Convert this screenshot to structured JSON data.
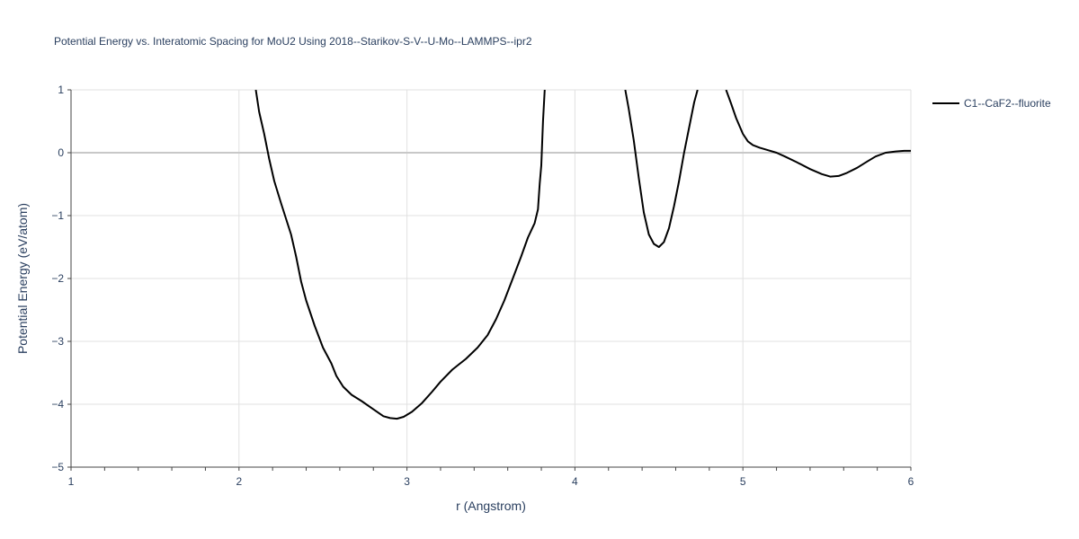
{
  "chart_data": {
    "type": "line",
    "title": "Potential Energy vs. Interatomic Spacing for MoU2 Using 2018--Starikov-S-V--U-Mo--LAMMPS--ipr2",
    "xlabel": "r (Angstrom)",
    "ylabel": "Potential Energy (eV/atom)",
    "xlim": [
      1,
      6
    ],
    "ylim": [
      -5,
      1
    ],
    "x_ticks": [
      "1",
      "2",
      "3",
      "4",
      "5",
      "6"
    ],
    "y_ticks": [
      "1",
      "0",
      "−1",
      "−2",
      "−3",
      "−4",
      "−5"
    ],
    "grid": true,
    "legend_position": "top-right",
    "series": [
      {
        "name": "C1--CaF2--fluorite",
        "color": "#000000",
        "segments": [
          [
            [
              2.1,
              1.0
            ],
            [
              2.12,
              0.65
            ],
            [
              2.15,
              0.3
            ],
            [
              2.18,
              -0.1
            ],
            [
              2.21,
              -0.45
            ],
            [
              2.25,
              -0.8
            ],
            [
              2.28,
              -1.05
            ],
            [
              2.31,
              -1.3
            ],
            [
              2.34,
              -1.65
            ],
            [
              2.37,
              -2.05
            ],
            [
              2.4,
              -2.35
            ],
            [
              2.45,
              -2.75
            ],
            [
              2.5,
              -3.1
            ],
            [
              2.55,
              -3.35
            ],
            [
              2.58,
              -3.55
            ],
            [
              2.62,
              -3.72
            ],
            [
              2.67,
              -3.85
            ],
            [
              2.73,
              -3.95
            ],
            [
              2.8,
              -4.08
            ],
            [
              2.86,
              -4.19
            ],
            [
              2.9,
              -4.22
            ],
            [
              2.94,
              -4.23
            ],
            [
              2.98,
              -4.2
            ],
            [
              3.03,
              -4.12
            ],
            [
              3.09,
              -3.98
            ],
            [
              3.15,
              -3.8
            ],
            [
              3.2,
              -3.64
            ],
            [
              3.27,
              -3.45
            ],
            [
              3.35,
              -3.28
            ],
            [
              3.42,
              -3.1
            ],
            [
              3.48,
              -2.9
            ],
            [
              3.53,
              -2.65
            ],
            [
              3.58,
              -2.35
            ],
            [
              3.63,
              -2.0
            ],
            [
              3.68,
              -1.65
            ],
            [
              3.72,
              -1.35
            ],
            [
              3.76,
              -1.12
            ],
            [
              3.78,
              -0.9
            ],
            [
              3.79,
              -0.5
            ],
            [
              3.8,
              -0.2
            ],
            [
              3.81,
              0.5
            ],
            [
              3.82,
              1.0
            ]
          ],
          [
            [
              4.3,
              1.0
            ],
            [
              4.32,
              0.7
            ],
            [
              4.35,
              0.2
            ],
            [
              4.38,
              -0.4
            ],
            [
              4.41,
              -0.95
            ],
            [
              4.44,
              -1.3
            ],
            [
              4.47,
              -1.45
            ],
            [
              4.5,
              -1.5
            ],
            [
              4.53,
              -1.42
            ],
            [
              4.56,
              -1.2
            ],
            [
              4.59,
              -0.85
            ],
            [
              4.62,
              -0.45
            ],
            [
              4.65,
              0.0
            ],
            [
              4.68,
              0.4
            ],
            [
              4.71,
              0.8
            ],
            [
              4.73,
              1.0
            ]
          ],
          [
            [
              4.9,
              1.0
            ],
            [
              4.93,
              0.78
            ],
            [
              4.96,
              0.55
            ],
            [
              5.0,
              0.3
            ],
            [
              5.03,
              0.18
            ],
            [
              5.06,
              0.12
            ],
            [
              5.1,
              0.08
            ],
            [
              5.15,
              0.04
            ],
            [
              5.2,
              0.0
            ],
            [
              5.25,
              -0.06
            ],
            [
              5.32,
              -0.15
            ],
            [
              5.4,
              -0.26
            ],
            [
              5.47,
              -0.34
            ],
            [
              5.52,
              -0.38
            ],
            [
              5.57,
              -0.37
            ],
            [
              5.62,
              -0.32
            ],
            [
              5.68,
              -0.24
            ],
            [
              5.74,
              -0.14
            ],
            [
              5.79,
              -0.06
            ],
            [
              5.85,
              0.0
            ],
            [
              5.91,
              0.02
            ],
            [
              5.96,
              0.03
            ],
            [
              6.0,
              0.03
            ]
          ]
        ]
      }
    ]
  }
}
